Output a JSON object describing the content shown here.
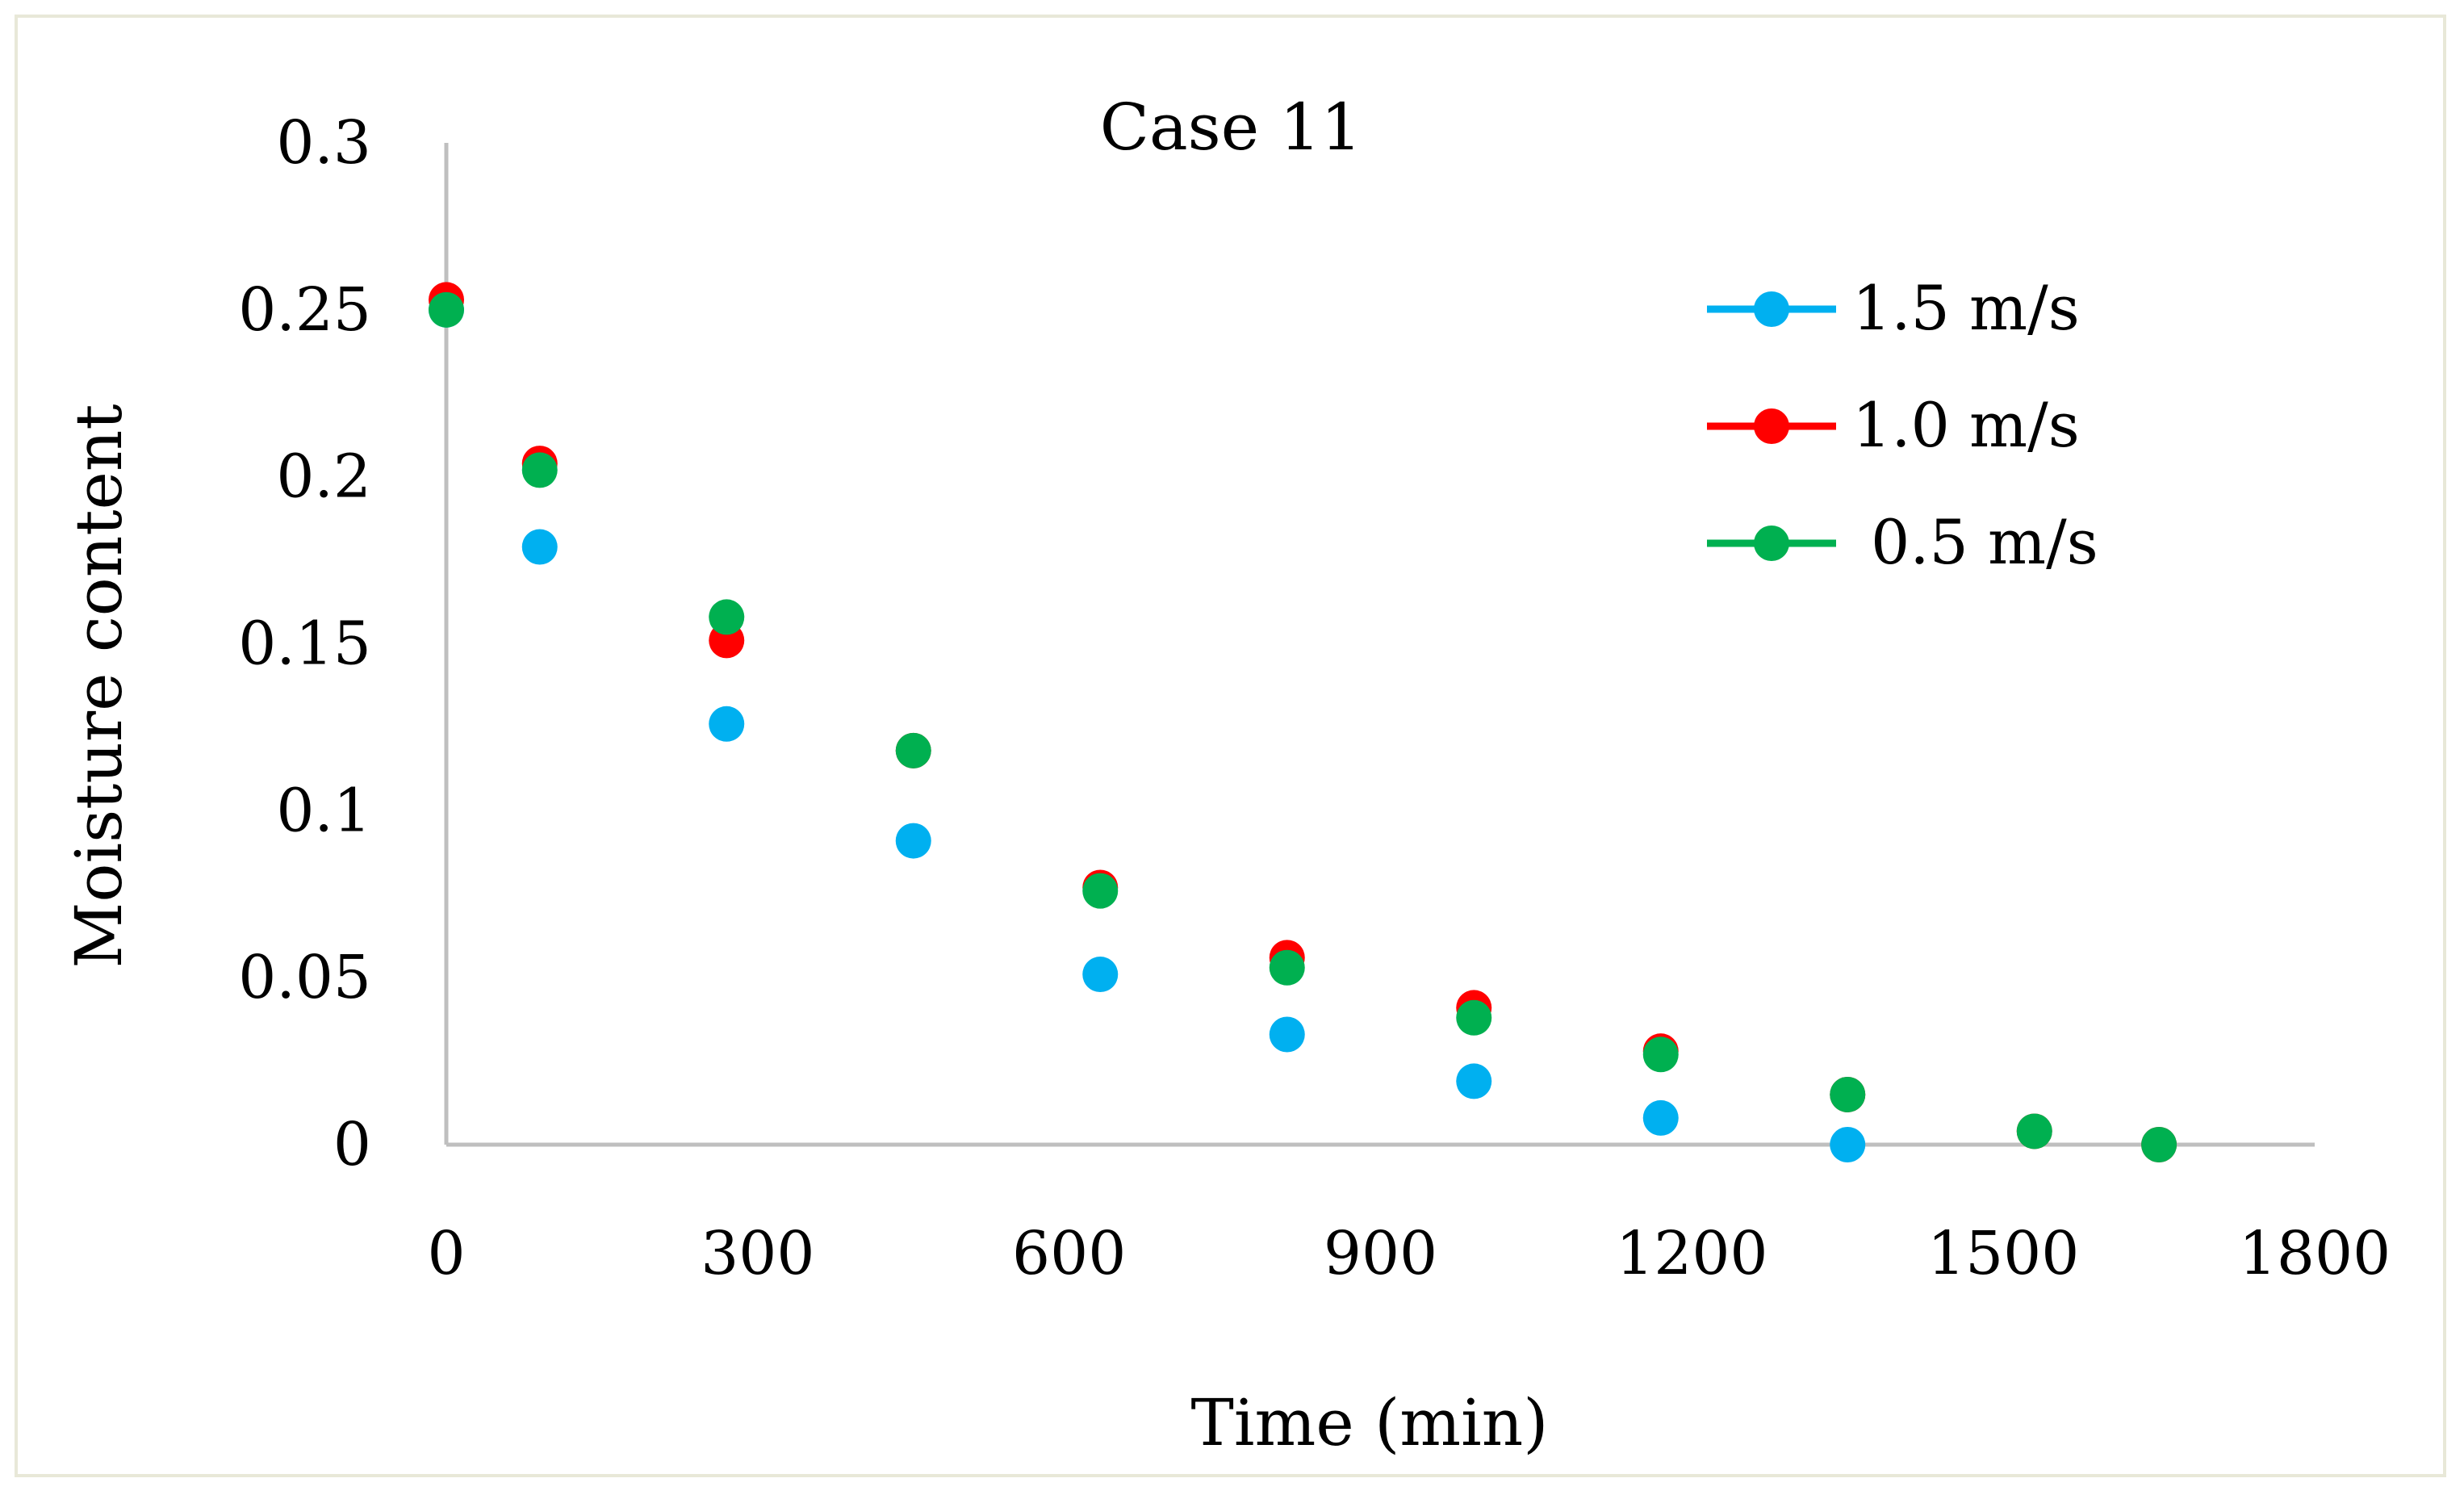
{
  "chart_data": {
    "type": "scatter",
    "title": "Case 11",
    "xlabel": "Time (min)",
    "ylabel": "Moisture content",
    "xlim": [
      0,
      1800
    ],
    "ylim": [
      0,
      0.3
    ],
    "xticks": [
      0,
      300,
      600,
      900,
      1200,
      1500,
      1800
    ],
    "yticks": [
      0,
      0.05,
      0.1,
      0.15,
      0.2,
      0.25,
      0.3
    ],
    "xtick_labels": [
      "0",
      "300",
      "600",
      "900",
      "1200",
      "1500",
      "1800"
    ],
    "ytick_labels": [
      "0",
      "0.05",
      "0.1",
      "0.15",
      "0.2",
      "0.25",
      "0.3"
    ],
    "grid": false,
    "legend_position": "top-right",
    "series": [
      {
        "name": "1.5 m/s",
        "color": "#00b0f0",
        "x": [
          0,
          90,
          270,
          450,
          630,
          810,
          990,
          1170,
          1350
        ],
        "y": [
          0.25,
          0.179,
          0.126,
          0.091,
          0.051,
          0.033,
          0.019,
          0.008,
          0.0
        ]
      },
      {
        "name": "1.0 m/s",
        "color": "#ff0000",
        "x": [
          0,
          90,
          270,
          450,
          630,
          810,
          990,
          1170,
          1350,
          1530,
          1650
        ],
        "y": [
          0.253,
          0.204,
          0.151,
          0.118,
          0.077,
          0.056,
          0.041,
          0.028,
          0.015,
          0.004,
          0.0
        ]
      },
      {
        "name": "0.5 m/s",
        "color": "#00b050",
        "x": [
          0,
          90,
          270,
          450,
          630,
          810,
          990,
          1170,
          1350,
          1530,
          1650
        ],
        "y": [
          0.25,
          0.202,
          0.158,
          0.118,
          0.076,
          0.053,
          0.038,
          0.027,
          0.015,
          0.004,
          0.0
        ]
      }
    ],
    "axis_color": "#bfbfbf"
  }
}
